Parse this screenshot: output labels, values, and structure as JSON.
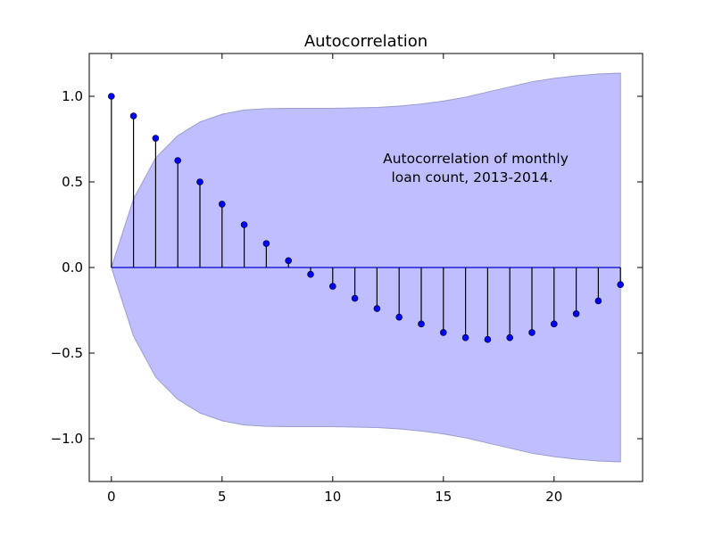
{
  "chart_data": {
    "type": "stem",
    "title": "Autocorrelation",
    "xlabel": "",
    "ylabel": "",
    "xlim": [
      -1,
      24
    ],
    "ylim": [
      -1.25,
      1.25
    ],
    "xticks": [
      0,
      5,
      10,
      15,
      20
    ],
    "xtick_labels": [
      "0",
      "5",
      "10",
      "15",
      "20"
    ],
    "yticks": [
      1.0,
      0.5,
      0.0,
      -0.5,
      -1.0
    ],
    "ytick_labels": [
      "1.0",
      "0.5",
      "0.0",
      "−0.5",
      "−1.0"
    ],
    "grid": false,
    "legend": "none",
    "lags": [
      0,
      1,
      2,
      3,
      4,
      5,
      6,
      7,
      8,
      9,
      10,
      11,
      12,
      13,
      14,
      15,
      16,
      17,
      18,
      19,
      20,
      21,
      22,
      23
    ],
    "acf": [
      1.0,
      0.885,
      0.755,
      0.625,
      0.5,
      0.37,
      0.25,
      0.14,
      0.04,
      -0.04,
      -0.11,
      -0.18,
      -0.24,
      -0.29,
      -0.33,
      -0.38,
      -0.41,
      -0.42,
      -0.41,
      -0.38,
      -0.33,
      -0.27,
      -0.195,
      -0.1
    ],
    "confidence_band": [
      0.0,
      0.4,
      0.64,
      0.77,
      0.85,
      0.895,
      0.92,
      0.928,
      0.93,
      0.93,
      0.93,
      0.932,
      0.935,
      0.943,
      0.955,
      0.972,
      0.995,
      1.025,
      1.055,
      1.085,
      1.105,
      1.12,
      1.13,
      1.135
    ],
    "annotation": [
      "Autocorrelation of monthly",
      "loan count, 2013-2014."
    ],
    "colors": {
      "marker": "#0000ff",
      "stem": "#000000",
      "baseline": "#0000cc",
      "band_fill": "#bfbfff",
      "band_edge": "#9b9bd0"
    }
  }
}
